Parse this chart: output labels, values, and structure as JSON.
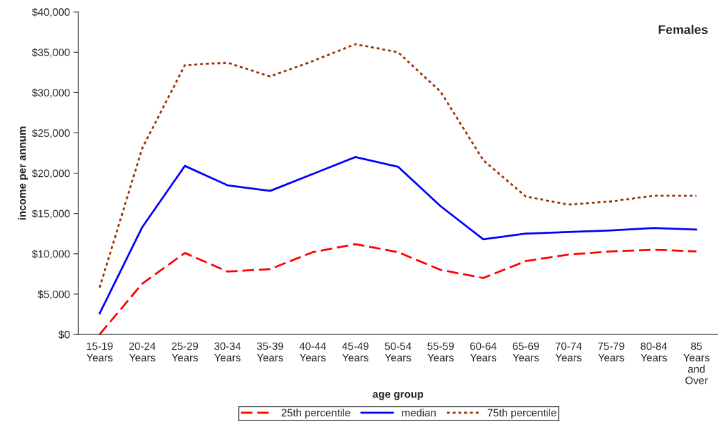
{
  "chart_data": {
    "type": "line",
    "xlabel": "age group",
    "ylabel": "income per annum",
    "annotations": [
      "Females"
    ],
    "categories": [
      "15-19\nYears",
      "20-24\nYears",
      "25-29\nYears",
      "30-34\nYears",
      "35-39\nYears",
      "40-44\nYears",
      "45-49\nYears",
      "50-54\nYears",
      "55-59\nYears",
      "60-64\nYears",
      "65-69\nYears",
      "70-74\nYears",
      "75-79\nYears",
      "80-84\nYears",
      "85\nYears\nand\nOver"
    ],
    "series": [
      {
        "name": "25th percentile",
        "color": "#ff0000",
        "line_style": "dashed",
        "values": [
          0,
          6300,
          10100,
          7800,
          8100,
          10200,
          11200,
          10200,
          8000,
          7000,
          9100,
          9900,
          10300,
          10500,
          10300
        ]
      },
      {
        "name": "median",
        "color": "#0000ff",
        "line_style": "solid",
        "values": [
          2600,
          13300,
          20900,
          18500,
          17800,
          19900,
          22000,
          20800,
          15900,
          11800,
          12500,
          12700,
          12900,
          13200,
          13000
        ]
      },
      {
        "name": "75th percentile",
        "color": "#993300",
        "line_style": "dotted",
        "values": [
          5800,
          23100,
          33400,
          33700,
          32000,
          33900,
          36000,
          35000,
          30100,
          21600,
          17100,
          16100,
          16500,
          17200,
          17200
        ]
      }
    ],
    "ylim": [
      0,
      40000
    ],
    "yticks": [
      {
        "value": 0,
        "label": "$0"
      },
      {
        "value": 5000,
        "label": "$5,000"
      },
      {
        "value": 10000,
        "label": "$10,000"
      },
      {
        "value": 15000,
        "label": "$15,000"
      },
      {
        "value": 20000,
        "label": "$20,000"
      },
      {
        "value": 25000,
        "label": "$25,000"
      },
      {
        "value": 30000,
        "label": "$30,000"
      },
      {
        "value": 35000,
        "label": "$35,000"
      },
      {
        "value": 40000,
        "label": "$40,000"
      }
    ],
    "grid": false,
    "legend": "bottom",
    "marker": "none"
  }
}
